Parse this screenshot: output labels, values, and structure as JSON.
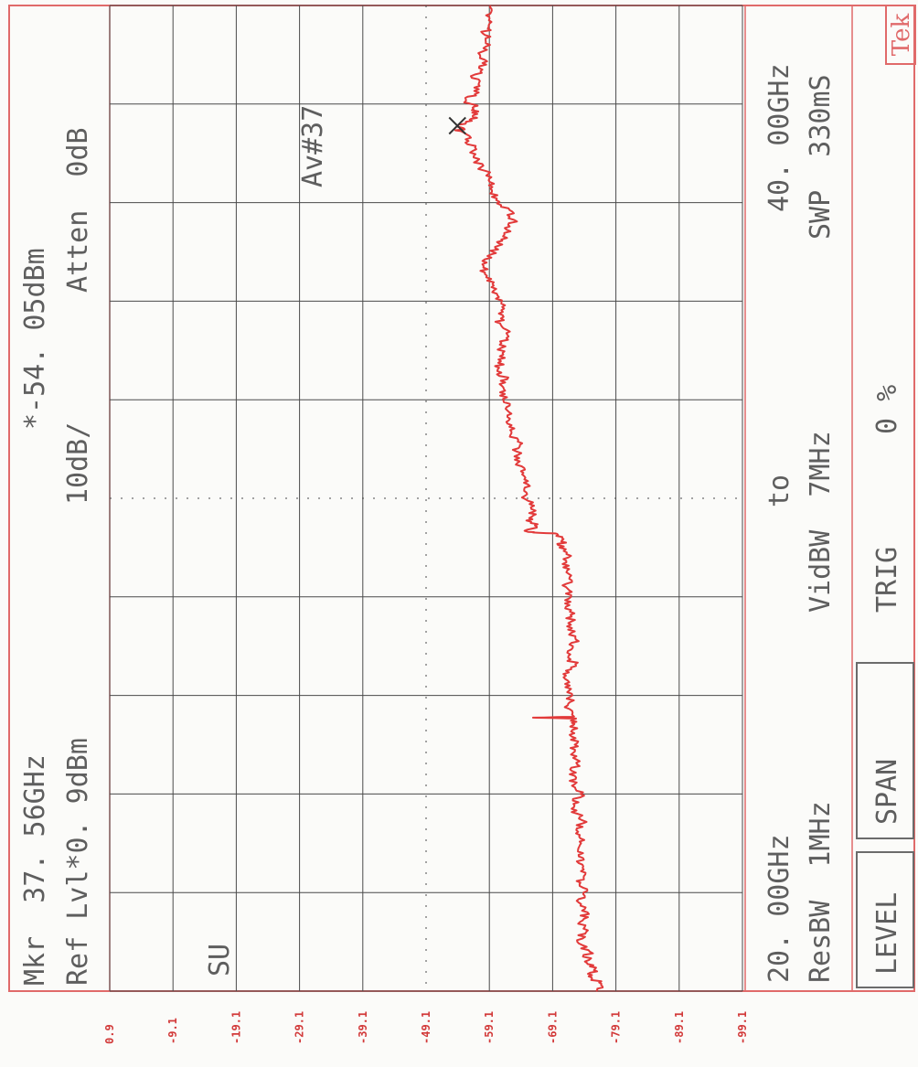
{
  "logo": "Tek",
  "header": {
    "marker": "Mkr  37. 56GHz",
    "marker_level": "*-54. 05dBm",
    "ref_level": "Ref Lvl*0. 9dBm",
    "scale": "10dB/",
    "atten": "Atten  0dB",
    "averaging": "Av#37",
    "su": "SU"
  },
  "footer": {
    "start_freq": "20. 00GHz",
    "to": "to",
    "stop_freq": "40. 00GHz",
    "res_bw": "ResBW  1MHz",
    "vid_bw": "VidBW  7MHz",
    "sweep": "SWP  330mS",
    "trig": "TRIG",
    "trig_value": "0 %"
  },
  "buttons": {
    "level": "LEVEL",
    "span": "SPAN"
  },
  "colors": {
    "trace": "#e23a3a",
    "frame": "#e06a6a",
    "grid": "#4a4a4a",
    "axis_labels": "#d23a3a",
    "text": "#5e5e5e",
    "background": "#fbfbf9"
  },
  "chart_data": {
    "type": "line",
    "xlabel": "",
    "ylabel": "",
    "xlim": [
      20.0,
      40.0
    ],
    "ylim": [
      -99.1,
      0.9
    ],
    "y_ticks": [
      "0.9",
      "-9.1",
      "-19.1",
      "-29.1",
      "-39.1",
      "-49.1",
      "-59.1",
      "-69.1",
      "-79.1",
      "-89.1",
      "-99.1"
    ],
    "grid": true,
    "marker": {
      "x": 37.56,
      "y": -54.05
    },
    "series": [
      {
        "points": [
          [
            20.0,
            -76.0
          ],
          [
            20.15,
            -76.8
          ],
          [
            20.3,
            -74.8
          ],
          [
            20.45,
            -75.8
          ],
          [
            20.6,
            -74.2
          ],
          [
            20.8,
            -75.0
          ],
          [
            21.0,
            -73.0
          ],
          [
            21.2,
            -74.4
          ],
          [
            21.4,
            -73.4
          ],
          [
            21.6,
            -74.6
          ],
          [
            21.8,
            -73.2
          ],
          [
            22.0,
            -74.0
          ],
          [
            22.2,
            -73.5
          ],
          [
            22.4,
            -74.3
          ],
          [
            22.6,
            -73.2
          ],
          [
            22.8,
            -73.9
          ],
          [
            23.0,
            -73.6
          ],
          [
            23.2,
            -72.8
          ],
          [
            23.4,
            -73.8
          ],
          [
            23.6,
            -73.0
          ],
          [
            23.8,
            -72.4
          ],
          [
            24.0,
            -73.5
          ],
          [
            24.2,
            -72.6
          ],
          [
            24.4,
            -71.8
          ],
          [
            24.6,
            -73.0
          ],
          [
            24.8,
            -72.0
          ],
          [
            25.0,
            -72.6
          ],
          [
            25.2,
            -71.8
          ],
          [
            25.4,
            -72.4
          ],
          [
            25.53,
            -72.8
          ],
          [
            25.55,
            -66.0
          ],
          [
            25.57,
            -72.5
          ],
          [
            25.8,
            -71.5
          ],
          [
            26.0,
            -72.2
          ],
          [
            26.2,
            -71.8
          ],
          [
            26.4,
            -71.2
          ],
          [
            26.6,
            -72.8
          ],
          [
            26.8,
            -71.6
          ],
          [
            27.0,
            -72.3
          ],
          [
            27.2,
            -72.7
          ],
          [
            27.4,
            -71.4
          ],
          [
            27.6,
            -72.1
          ],
          [
            27.8,
            -71.2
          ],
          [
            28.0,
            -72.0
          ],
          [
            28.2,
            -71.2
          ],
          [
            28.4,
            -71.8
          ],
          [
            28.6,
            -70.8
          ],
          [
            28.8,
            -71.6
          ],
          [
            29.0,
            -70.2
          ],
          [
            29.15,
            -70.6
          ],
          [
            29.28,
            -69.8
          ],
          [
            29.32,
            -65.2
          ],
          [
            29.45,
            -66.3
          ],
          [
            29.6,
            -65.4
          ],
          [
            29.75,
            -66.4
          ],
          [
            29.95,
            -65.2
          ],
          [
            30.15,
            -64.6
          ],
          [
            30.35,
            -65.2
          ],
          [
            30.55,
            -64.1
          ],
          [
            30.75,
            -63.9
          ],
          [
            30.95,
            -63.4
          ],
          [
            31.15,
            -63.6
          ],
          [
            31.35,
            -62.6
          ],
          [
            31.55,
            -61.8
          ],
          [
            31.75,
            -62.2
          ],
          [
            31.95,
            -61.4
          ],
          [
            32.15,
            -60.8
          ],
          [
            32.35,
            -61.6
          ],
          [
            32.55,
            -61.0
          ],
          [
            32.75,
            -60.5
          ],
          [
            32.95,
            -61.2
          ],
          [
            33.15,
            -61.0
          ],
          [
            33.35,
            -61.8
          ],
          [
            33.55,
            -60.8
          ],
          [
            33.75,
            -60.6
          ],
          [
            33.95,
            -61.0
          ],
          [
            34.15,
            -60.3
          ],
          [
            34.35,
            -59.6
          ],
          [
            34.55,
            -58.4
          ],
          [
            34.75,
            -58.0
          ],
          [
            34.95,
            -59.4
          ],
          [
            35.1,
            -60.0
          ],
          [
            35.25,
            -61.0
          ],
          [
            35.45,
            -61.8
          ],
          [
            35.65,
            -63.0
          ],
          [
            35.85,
            -62.3
          ],
          [
            36.05,
            -60.2
          ],
          [
            36.25,
            -59.5
          ],
          [
            36.45,
            -59.0
          ],
          [
            36.65,
            -58.3
          ],
          [
            36.85,
            -57.2
          ],
          [
            37.05,
            -56.5
          ],
          [
            37.25,
            -55.8
          ],
          [
            37.45,
            -54.6
          ],
          [
            37.56,
            -54.05
          ],
          [
            37.68,
            -56.0
          ],
          [
            37.8,
            -57.2
          ],
          [
            37.95,
            -56.7
          ],
          [
            38.05,
            -55.3
          ],
          [
            38.2,
            -56.8
          ],
          [
            38.4,
            -57.4
          ],
          [
            38.6,
            -56.8
          ],
          [
            38.8,
            -58.6
          ],
          [
            39.0,
            -57.6
          ],
          [
            39.2,
            -59.2
          ],
          [
            39.4,
            -58.4
          ],
          [
            39.6,
            -59.0
          ],
          [
            39.8,
            -58.6
          ],
          [
            40.0,
            -59.3
          ]
        ]
      }
    ]
  }
}
